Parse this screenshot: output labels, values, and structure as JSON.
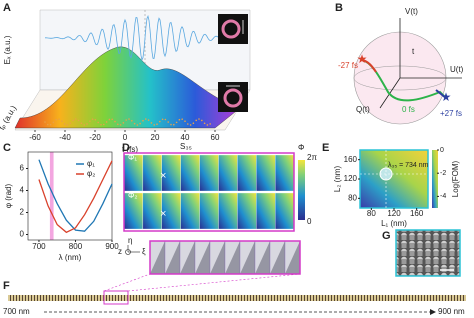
{
  "panel_labels": {
    "A": "A",
    "B": "B",
    "C": "C",
    "D": "D",
    "E": "E",
    "F": "F",
    "G": "G"
  },
  "panel_a": {
    "y_label": "Eₓ (a.u.)",
    "x_label": "t (fs)",
    "depth_label": "tₚ (a.u.)",
    "xticks": [
      -60,
      -40,
      -20,
      0,
      20,
      40,
      60
    ]
  },
  "panel_b": {
    "v_label": "V(t)",
    "u_label": "U(t)",
    "q_label": "Q(t)",
    "t_label": "t",
    "times": [
      "-27 fs",
      "0 fs",
      "+27 fs"
    ]
  },
  "panel_c": {
    "type": "line",
    "x_label": "λ (nm)",
    "y_label": "φ (rad)",
    "x": [
      700,
      725,
      750,
      775,
      800,
      825,
      850,
      875,
      900
    ],
    "series": [
      {
        "name": "φ₁",
        "color": "#1f77b4",
        "values": [
          6.8,
          4.6,
          2.8,
          1.3,
          0.4,
          0.3,
          1.2,
          2.8,
          4.6
        ]
      },
      {
        "name": "φ₂",
        "color": "#d9412b",
        "values": [
          5.0,
          2.6,
          0.9,
          0.2,
          0.6,
          1.8,
          3.3,
          5.0,
          6.7
        ]
      }
    ],
    "xlim": [
      670,
      900
    ],
    "ylim": [
      -0.5,
      7.5
    ],
    "xticks": [
      700,
      800,
      900
    ],
    "yticks": [
      0,
      2,
      4,
      6
    ]
  },
  "panel_d": {
    "phi1": "Φ₁",
    "phi2": "Φ₂",
    "s35": "S₃₅",
    "cbar_label": "Φ",
    "cbar_max": "2π",
    "cbar_min": "0",
    "eta": "η",
    "xi": "ξ",
    "z": "z"
  },
  "panel_e": {
    "annotation": "λ₃₅ = 734 nm",
    "x_label": "L₁ (nm)",
    "y_label": "L₂ (nm)",
    "xticks": [
      80,
      120,
      160
    ],
    "yticks": [
      80,
      120,
      160
    ],
    "cbar_label": "Log(FOM)",
    "cbar_ticks": [
      0,
      -2,
      -4
    ]
  },
  "panel_f": {
    "start": "700 nm",
    "end": "900 nm"
  }
}
